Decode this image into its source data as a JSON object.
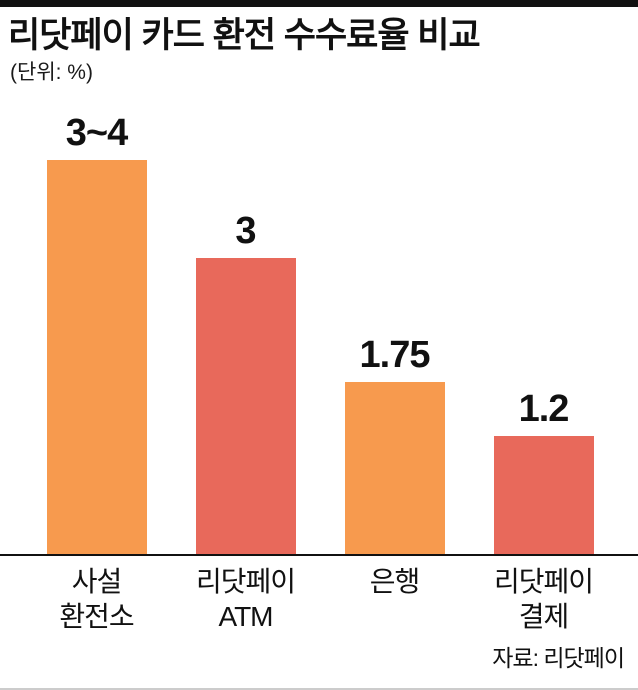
{
  "header": {
    "title": "리닷페이 카드 환전 수수료율 비교",
    "unit_label": "(단위: %)"
  },
  "footer": {
    "source": "자료: 리닷페이"
  },
  "chart_data": {
    "type": "bar",
    "title": "리닷페이 카드 환전 수수료율 비교",
    "unit": "%",
    "categories": [
      "사설 환전소",
      "리닷페이 ATM",
      "은행",
      "리닷페이 결제"
    ],
    "categories_display": [
      "사설\n환전소",
      "리닷페이\nATM",
      "은행",
      "리닷페이\n결제"
    ],
    "value_labels": [
      "3~4",
      "3",
      "1.75",
      "1.2"
    ],
    "values": [
      4,
      3,
      1.75,
      1.2
    ],
    "bar_colors": [
      "#F79A4E",
      "#E8695B",
      "#F79A4E",
      "#E8695B"
    ],
    "ylim": [
      0,
      4
    ],
    "grid": false,
    "legend": "none",
    "source": "자료: 리닷페이"
  }
}
